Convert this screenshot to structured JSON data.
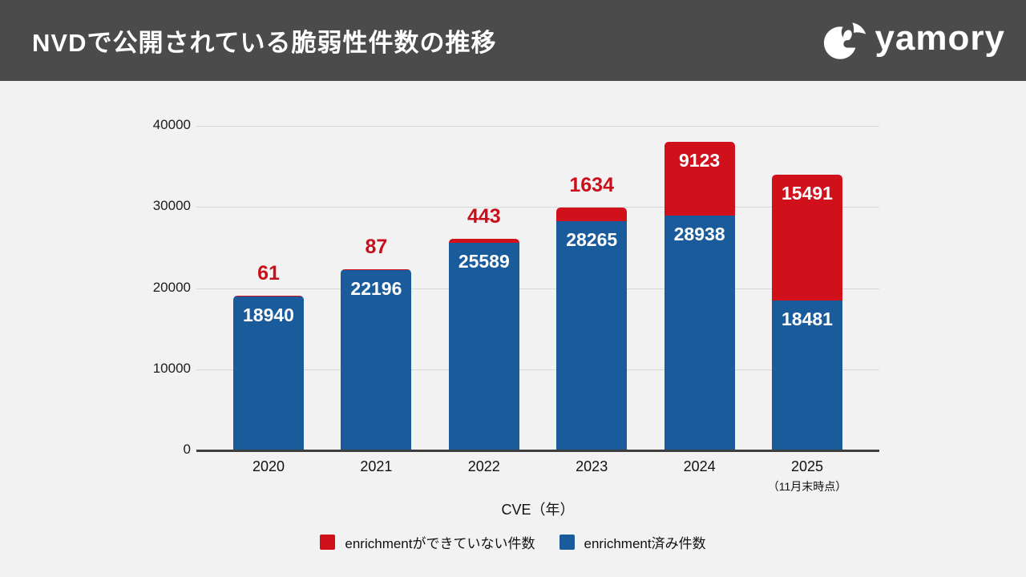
{
  "header": {
    "title": "NVDで公開されている脆弱性件数の推移",
    "logo_text": "yamory"
  },
  "colors": {
    "header_bg": "#4b4b4b",
    "background": "#f2f2f2",
    "enriched_blue": "#1a5b9c",
    "not_enriched_red": "#d0111b",
    "red_label_text": "#c8101c",
    "gridline": "#d8d8d8",
    "axis_line": "#3e3e3e"
  },
  "chart_data": {
    "type": "bar",
    "stacked": true,
    "title": "NVDで公開されている脆弱性件数の推移",
    "xlabel": "CVE（年）",
    "ylabel": "",
    "ylim": [
      0,
      40000
    ],
    "yticks": [
      0,
      10000,
      20000,
      30000,
      40000
    ],
    "grid": true,
    "legend_position": "bottom",
    "categories": [
      "2020",
      "2021",
      "2022",
      "2023",
      "2024",
      "2025"
    ],
    "category_notes": [
      "",
      "",
      "",
      "",
      "",
      "（11月末時点）"
    ],
    "series": [
      {
        "name": "enrichment済み件数",
        "color": "#1a5b9c",
        "values": [
          18940,
          22196,
          25589,
          28265,
          28938,
          18481
        ]
      },
      {
        "name": "enrichmentができていない件数",
        "color": "#d0111b",
        "values": [
          61,
          87,
          443,
          1634,
          9123,
          15491
        ]
      }
    ],
    "legend": [
      {
        "label": "enrichmentができていない件数",
        "color": "#d0111b"
      },
      {
        "label": "enrichment済み件数",
        "color": "#1a5b9c"
      }
    ]
  }
}
